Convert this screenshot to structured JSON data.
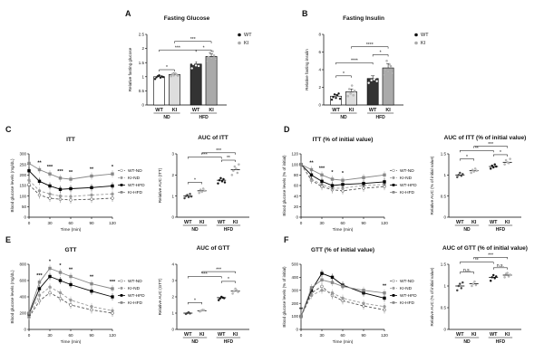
{
  "chart_data": [
    {
      "id": "A",
      "panel_label": "A",
      "type": "bar",
      "title": "Fasting Glucose",
      "ylabel": "Relative fasting glucose",
      "ylim": [
        0,
        2.5
      ],
      "yticks": [
        0,
        0.5,
        1.0,
        1.5,
        2.0,
        2.5
      ],
      "categories": [
        "WT",
        "KI",
        "WT",
        "KI"
      ],
      "groups": [
        "ND",
        "HFD"
      ],
      "values": [
        1.0,
        1.08,
        1.45,
        1.72
      ],
      "errors": [
        0.04,
        0.05,
        0.08,
        0.09
      ],
      "dots": [
        [
          0.92,
          0.98,
          1.02,
          1.05,
          0.97,
          1.01,
          0.99
        ],
        [
          1.02,
          1.1,
          1.05,
          1.12,
          1.08,
          1.04
        ],
        [
          1.3,
          1.45,
          1.55,
          1.4,
          1.5,
          1.38,
          1.6
        ],
        [
          1.55,
          1.7,
          1.85,
          1.65,
          1.9,
          1.75,
          1.62
        ]
      ],
      "legend": [
        "WT",
        "KI"
      ],
      "significance": [
        {
          "a": 0,
          "b": 1,
          "label": "*",
          "y": 1.25
        },
        {
          "a": 0,
          "b": 2,
          "label": "***",
          "y": 1.95
        },
        {
          "a": 2,
          "b": 3,
          "label": "*",
          "y": 1.95
        },
        {
          "a": 1,
          "b": 3,
          "label": "***",
          "y": 2.25
        }
      ]
    },
    {
      "id": "B",
      "panel_label": "B",
      "type": "bar",
      "title": "Fasting Insulin",
      "ylabel": "Relative fasting insulin",
      "ylim": [
        0,
        8
      ],
      "yticks": [
        0,
        2,
        4,
        6,
        8
      ],
      "categories": [
        "WT",
        "KI",
        "WT",
        "KI"
      ],
      "groups": [
        "ND",
        "HFD"
      ],
      "values": [
        1.0,
        1.5,
        3.0,
        4.2
      ],
      "errors": [
        0.2,
        0.3,
        0.3,
        0.5
      ],
      "dots": [
        [
          0.6,
          0.9,
          1.2,
          0.8,
          1.1,
          1.3,
          0.7
        ],
        [
          1.0,
          1.8,
          1.3,
          2.2,
          1.1,
          1.6
        ],
        [
          2.5,
          3.2,
          2.8,
          3.5,
          2.9,
          3.1,
          2.7
        ],
        [
          3.4,
          4.0,
          5.0,
          3.8,
          4.6,
          4.4,
          3.6
        ]
      ],
      "legend": [
        "WT",
        "KI"
      ],
      "significance": [
        {
          "a": 0,
          "b": 1,
          "label": "*",
          "y": 3.3
        },
        {
          "a": 0,
          "b": 2,
          "label": "****",
          "y": 4.8
        },
        {
          "a": 2,
          "b": 3,
          "label": "*",
          "y": 5.7
        },
        {
          "a": 1,
          "b": 3,
          "label": "****",
          "y": 6.6
        }
      ]
    },
    {
      "id": "C",
      "panel_label": "C",
      "type": "line",
      "title": "ITT",
      "xlabel": "Time (min)",
      "ylabel": "Blood glucose levels (mg/dL)",
      "x": [
        0,
        15,
        30,
        45,
        60,
        90,
        120
      ],
      "xticks": [
        0,
        30,
        60,
        90,
        120
      ],
      "xlim": [
        0,
        120
      ],
      "ylim": [
        0,
        300
      ],
      "yticks": [
        0,
        50,
        100,
        150,
        200,
        250,
        300
      ],
      "series": [
        {
          "name": "WT-ND",
          "values": [
            155,
            105,
            90,
            85,
            82,
            85,
            90
          ]
        },
        {
          "name": "KI-ND",
          "values": [
            175,
            125,
            110,
            100,
            98,
            105,
            110
          ]
        },
        {
          "name": "WT-HFD",
          "values": [
            220,
            170,
            148,
            132,
            135,
            140,
            148
          ]
        },
        {
          "name": "KI-HFD",
          "values": [
            255,
            225,
            205,
            185,
            180,
            195,
            205
          ]
        }
      ],
      "annotations": [
        {
          "x": 15,
          "label": "**"
        },
        {
          "x": 30,
          "label": "***"
        },
        {
          "x": 45,
          "label": "***"
        },
        {
          "x": 60,
          "label": "**"
        },
        {
          "x": 90,
          "label": "**"
        },
        {
          "x": 120,
          "label": "*"
        }
      ]
    },
    {
      "id": "C2",
      "type": "scatter",
      "title": "AUC of ITT",
      "ylabel": "Relative AUC (ITT)",
      "ylim": [
        0,
        3
      ],
      "yticks": [
        0,
        1,
        2,
        3
      ],
      "categories": [
        "WT",
        "KI",
        "WT",
        "KI"
      ],
      "groups": [
        "ND",
        "HFD"
      ],
      "values": [
        1.0,
        1.25,
        1.75,
        2.25
      ],
      "dots": [
        [
          0.9,
          1.0,
          1.05,
          0.95,
          1.1,
          0.98
        ],
        [
          1.15,
          1.3,
          1.2,
          1.35,
          1.25
        ],
        [
          1.6,
          1.75,
          1.85,
          1.7,
          1.8,
          1.65
        ],
        [
          2.0,
          2.2,
          2.4,
          2.3,
          2.1,
          2.5
        ]
      ],
      "significance": [
        {
          "a": 0,
          "b": 1,
          "label": "*",
          "y": 1.65
        },
        {
          "a": 2,
          "b": 3,
          "label": "**",
          "y": 2.7
        },
        {
          "a": 0,
          "b": 2,
          "label": "***",
          "y": 2.85
        },
        {
          "a": 1,
          "b": 3,
          "label": "***",
          "y": 3.05
        }
      ]
    },
    {
      "id": "D",
      "panel_label": "D",
      "type": "line",
      "title": "ITT (% of initial value)",
      "xlabel": "Time (min)",
      "ylabel": "Blood glucose levels (% of initial)",
      "x": [
        0,
        15,
        30,
        45,
        60,
        90,
        120
      ],
      "xticks": [
        0,
        30,
        60,
        90,
        120
      ],
      "xlim": [
        0,
        120
      ],
      "ylim": [
        0,
        120
      ],
      "yticks": [
        0,
        20,
        40,
        60,
        80,
        100,
        120
      ],
      "series": [
        {
          "name": "WT-ND",
          "values": [
            100,
            70,
            58,
            52,
            50,
            55,
            58
          ]
        },
        {
          "name": "KI-ND",
          "values": [
            100,
            72,
            62,
            55,
            55,
            60,
            62
          ]
        },
        {
          "name": "WT-HFD",
          "values": [
            100,
            80,
            68,
            60,
            62,
            64,
            67
          ]
        },
        {
          "name": "KI-HFD",
          "values": [
            100,
            90,
            80,
            72,
            70,
            75,
            80
          ]
        }
      ],
      "annotations": [
        {
          "x": 15,
          "label": "**"
        },
        {
          "x": 30,
          "label": "***"
        },
        {
          "x": 45,
          "label": "*"
        },
        {
          "x": 60,
          "label": "*"
        }
      ]
    },
    {
      "id": "D2",
      "type": "scatter",
      "title": "AUC of ITT (% of initial value)",
      "ylabel": "Relative AUC (% of initial value)",
      "ylim": [
        0,
        1.5
      ],
      "yticks": [
        0,
        0.5,
        1.0,
        1.5
      ],
      "categories": [
        "WT",
        "KI",
        "WT",
        "KI"
      ],
      "groups": [
        "ND",
        "HFD"
      ],
      "values": [
        1.0,
        1.1,
        1.2,
        1.3
      ],
      "dots": [
        [
          0.95,
          1.0,
          1.05,
          0.98,
          1.02
        ],
        [
          1.05,
          1.12,
          1.08,
          1.15,
          1.1
        ],
        [
          1.15,
          1.22,
          1.18,
          1.25,
          1.2
        ],
        [
          1.25,
          1.35,
          1.3,
          1.28,
          1.38
        ]
      ],
      "significance": [
        {
          "a": 0,
          "b": 1,
          "label": "*",
          "y": 1.38
        },
        {
          "a": 2,
          "b": 3,
          "label": "*",
          "y": 1.48
        },
        {
          "a": 0,
          "b": 2,
          "label": "**",
          "y": 1.58
        },
        {
          "a": 1,
          "b": 3,
          "label": "***",
          "y": 1.68
        }
      ]
    },
    {
      "id": "E",
      "panel_label": "E",
      "type": "line",
      "title": "GTT",
      "xlabel": "Time (min)",
      "ylabel": "Blood glucose levels (mg/dL)",
      "x": [
        0,
        15,
        30,
        45,
        60,
        90,
        120
      ],
      "xticks": [
        0,
        30,
        60,
        90,
        120
      ],
      "xlim": [
        0,
        120
      ],
      "ylim": [
        0,
        800
      ],
      "yticks": [
        0,
        200,
        400,
        600,
        800
      ],
      "series": [
        {
          "name": "WT-ND",
          "values": [
            150,
            350,
            450,
            380,
            300,
            240,
            200
          ]
        },
        {
          "name": "KI-ND",
          "values": [
            160,
            420,
            520,
            450,
            360,
            280,
            230
          ]
        },
        {
          "name": "WT-HFD",
          "values": [
            190,
            500,
            650,
            600,
            550,
            470,
            400
          ]
        },
        {
          "name": "KI-HFD",
          "values": [
            200,
            580,
            750,
            700,
            650,
            560,
            500
          ]
        }
      ],
      "annotations": [
        {
          "x": 15,
          "label": "***"
        },
        {
          "x": 30,
          "label": "*"
        },
        {
          "x": 45,
          "label": "*"
        },
        {
          "x": 60,
          "label": "**"
        },
        {
          "x": 90,
          "label": "**"
        },
        {
          "x": 120,
          "label": "***"
        }
      ]
    },
    {
      "id": "E2",
      "type": "scatter",
      "title": "AUC of GTT",
      "ylabel": "Relative AUC (GTT)",
      "ylim": [
        0,
        4
      ],
      "yticks": [
        0,
        1,
        2,
        3,
        4
      ],
      "categories": [
        "WT",
        "KI",
        "WT",
        "KI"
      ],
      "groups": [
        "ND",
        "HFD"
      ],
      "values": [
        1.0,
        1.15,
        1.95,
        2.35
      ],
      "dots": [
        [
          0.95,
          1.0,
          1.05,
          0.98
        ],
        [
          1.1,
          1.15,
          1.2,
          1.18
        ],
        [
          1.8,
          1.9,
          2.0,
          1.95,
          1.92
        ],
        [
          2.2,
          2.35,
          2.5,
          2.4,
          2.3
        ]
      ],
      "significance": [
        {
          "a": 0,
          "b": 1,
          "label": "*",
          "y": 1.65
        },
        {
          "a": 2,
          "b": 3,
          "label": "*",
          "y": 2.95
        },
        {
          "a": 0,
          "b": 2,
          "label": "***",
          "y": 3.25
        },
        {
          "a": 1,
          "b": 3,
          "label": "***",
          "y": 3.55
        }
      ]
    },
    {
      "id": "F",
      "panel_label": "F",
      "type": "line",
      "title": "GTT (% of initial value)",
      "xlabel": "Time (min)",
      "ylabel": "Blood glucose levels (% of initial)",
      "x": [
        0,
        15,
        30,
        45,
        60,
        90,
        120
      ],
      "xticks": [
        0,
        30,
        60,
        90,
        120
      ],
      "xlim": [
        0,
        120
      ],
      "ylim": [
        0,
        500
      ],
      "yticks": [
        0,
        100,
        200,
        300,
        400,
        500
      ],
      "series": [
        {
          "name": "WT-ND",
          "values": [
            100,
            280,
            330,
            260,
            220,
            180,
            150
          ]
        },
        {
          "name": "KI-ND",
          "values": [
            100,
            260,
            300,
            280,
            240,
            200,
            175
          ]
        },
        {
          "name": "WT-HFD",
          "values": [
            100,
            300,
            430,
            400,
            340,
            280,
            240
          ]
        },
        {
          "name": "KI-HFD",
          "values": [
            100,
            320,
            380,
            360,
            330,
            300,
            280
          ]
        }
      ],
      "annotations": [
        {
          "x": 0,
          "label": "**"
        },
        {
          "x": 120,
          "label": "**"
        }
      ]
    },
    {
      "id": "F2",
      "type": "scatter",
      "title": "AUC of GTT (% of initial value)",
      "ylabel": "Relative AUC (% of initial value)",
      "ylim": [
        0,
        1.5
      ],
      "yticks": [
        0,
        0.5,
        1.0,
        1.5
      ],
      "categories": [
        "WT",
        "KI",
        "WT",
        "KI"
      ],
      "groups": [
        "ND",
        "HFD"
      ],
      "values": [
        1.0,
        1.05,
        1.2,
        1.25
      ],
      "dots": [
        [
          0.9,
          1.0,
          1.05,
          0.95,
          1.08
        ],
        [
          1.0,
          1.05,
          1.1,
          1.02
        ],
        [
          1.12,
          1.2,
          1.25,
          1.18,
          1.22
        ],
        [
          1.2,
          1.28,
          1.3,
          1.22,
          1.26
        ]
      ],
      "significance": [
        {
          "a": 0,
          "b": 1,
          "label": "n.s.",
          "y": 1.32
        },
        {
          "a": 2,
          "b": 3,
          "label": "n.s.",
          "y": 1.42
        },
        {
          "a": 0,
          "b": 2,
          "label": "**",
          "y": 1.55
        },
        {
          "a": 1,
          "b": 3,
          "label": "***",
          "y": 1.66
        }
      ]
    }
  ]
}
